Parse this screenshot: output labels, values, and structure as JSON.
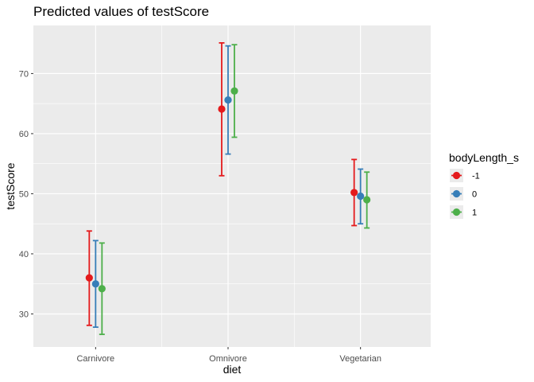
{
  "chart_data": {
    "type": "scatter",
    "title": "Predicted values of testScore",
    "xlabel": "diet",
    "ylabel": "testScore",
    "categories": [
      "Carnivore",
      "Omnivore",
      "Vegetarian"
    ],
    "ylim": [
      24.5,
      78
    ],
    "yticks": [
      30,
      40,
      50,
      60,
      70
    ],
    "grid": true,
    "legend": {
      "title": "bodyLength_s",
      "position": "right"
    },
    "series": [
      {
        "name": "-1",
        "color": "#e41a1c",
        "values": [
          36.0,
          64.1,
          50.2
        ],
        "lower": [
          28.1,
          53.0,
          44.7
        ],
        "upper": [
          43.8,
          75.1,
          55.7
        ]
      },
      {
        "name": "0",
        "color": "#377eb8",
        "values": [
          35.0,
          65.6,
          49.6
        ],
        "lower": [
          27.8,
          56.6,
          45.0
        ],
        "upper": [
          42.2,
          74.6,
          54.1
        ]
      },
      {
        "name": "1",
        "color": "#4daf4a",
        "values": [
          34.2,
          67.1,
          49.0
        ],
        "lower": [
          26.6,
          59.4,
          44.3
        ],
        "upper": [
          41.8,
          74.8,
          53.6
        ]
      }
    ]
  }
}
